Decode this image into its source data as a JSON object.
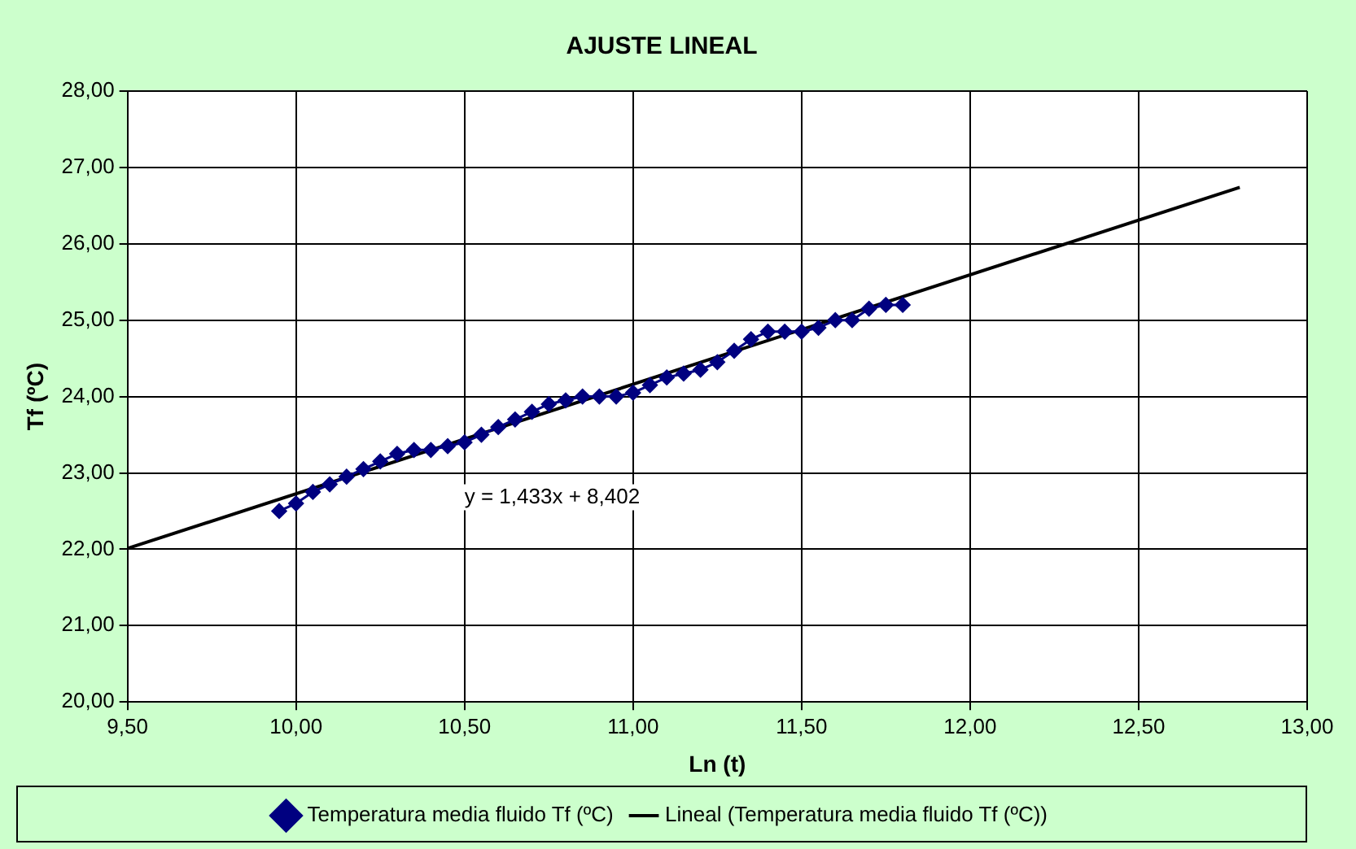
{
  "chart_data": {
    "type": "line",
    "title": "AJUSTE LINEAL",
    "xlabel": "Ln (t)",
    "ylabel": "Tf (ºC)",
    "xlim": [
      9.5,
      13
    ],
    "xticks": [
      {
        "value": 9.5,
        "label": "9,50"
      },
      {
        "value": 10,
        "label": "10,00"
      },
      {
        "value": 10.5,
        "label": "10,50"
      },
      {
        "value": 11,
        "label": "11,00"
      },
      {
        "value": 11.5,
        "label": "11,50"
      },
      {
        "value": 12,
        "label": "12,00"
      },
      {
        "value": 12.5,
        "label": "12,50"
      },
      {
        "value": 13,
        "label": "13,00"
      }
    ],
    "ylim": [
      20,
      28
    ],
    "yticks": [
      {
        "value": 20,
        "label": "20,00"
      },
      {
        "value": 21,
        "label": "21,00"
      },
      {
        "value": 22,
        "label": "22,00"
      },
      {
        "value": 23,
        "label": "23,00"
      },
      {
        "value": 24,
        "label": "24,00"
      },
      {
        "value": 25,
        "label": "25,00"
      },
      {
        "value": 26,
        "label": "26,00"
      },
      {
        "value": 27,
        "label": "27,00"
      },
      {
        "value": 28,
        "label": "28,00"
      }
    ],
    "grid": true,
    "legend": "bottom",
    "series": [
      {
        "name": "Temperatura media fluido Tf (ºC)",
        "color": "#000080",
        "marker": "diamond",
        "x": [
          9.95,
          10.0,
          10.05,
          10.1,
          10.15,
          10.2,
          10.25,
          10.3,
          10.35,
          10.4,
          10.45,
          10.5,
          10.55,
          10.6,
          10.65,
          10.7,
          10.75,
          10.8,
          10.85,
          10.9,
          10.95,
          11.0,
          11.05,
          11.1,
          11.15,
          11.2,
          11.25,
          11.3,
          11.35,
          11.4,
          11.45,
          11.5,
          11.55,
          11.6,
          11.65,
          11.7,
          11.75,
          11.8
        ],
        "values": [
          22.5,
          22.6,
          22.75,
          22.85,
          22.95,
          23.05,
          23.15,
          23.25,
          23.3,
          23.3,
          23.35,
          23.4,
          23.5,
          23.6,
          23.7,
          23.8,
          23.9,
          23.95,
          24.0,
          24.0,
          24.0,
          24.05,
          24.15,
          24.25,
          24.3,
          24.35,
          24.45,
          24.6,
          24.75,
          24.85,
          24.85,
          24.85,
          24.9,
          25.0,
          25.0,
          25.15,
          25.2,
          25.2
        ]
      },
      {
        "name": "Lineal (Temperatura media fluido Tf (ºC))",
        "color": "#000000",
        "marker": "none",
        "x": [
          9.5,
          12.8
        ],
        "values": [
          22.01,
          26.74
        ]
      }
    ],
    "annotations": [
      "y = 1,433x + 8,402"
    ]
  }
}
